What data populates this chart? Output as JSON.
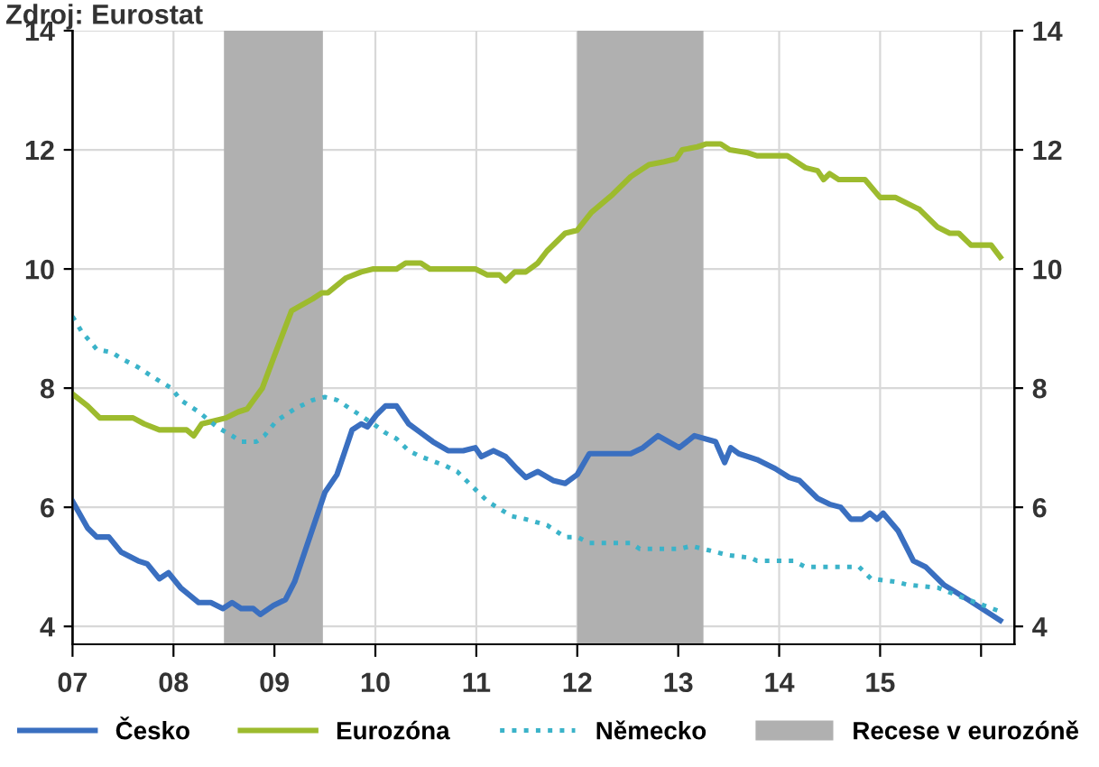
{
  "chart_data": {
    "type": "line",
    "annotations": [
      "Zdroj: Eurostat"
    ],
    "xlim": [
      7,
      16.33
    ],
    "xticks": [
      {
        "value": 7,
        "label": "07"
      },
      {
        "value": 8,
        "label": "08"
      },
      {
        "value": 9,
        "label": "09"
      },
      {
        "value": 10,
        "label": "10"
      },
      {
        "value": 11,
        "label": "11"
      },
      {
        "value": 12,
        "label": "12"
      },
      {
        "value": 13,
        "label": "13"
      },
      {
        "value": 14,
        "label": "14"
      },
      {
        "value": 15,
        "label": "15"
      },
      {
        "value": 16,
        "label": null
      }
    ],
    "ylim": [
      3.7,
      14
    ],
    "yticks": [
      4,
      6,
      8,
      10,
      12,
      14
    ],
    "y2lim": [
      3.7,
      14
    ],
    "y2ticks": [
      4,
      6,
      8,
      10,
      12,
      14
    ],
    "grid": true,
    "legend": "bottom",
    "bands": [
      {
        "axis": "x",
        "from": 8.5,
        "to": 9.48,
        "label": "Recese v eurozóně",
        "color": "#b0b0b0"
      },
      {
        "axis": "x",
        "from": 12.0,
        "to": 13.25,
        "color": "#b0b0b0"
      }
    ],
    "series": [
      {
        "name": "Česko",
        "color": "#3a6fc0",
        "line_style": "solid",
        "x": [
          7.0,
          7.15,
          7.24,
          7.36,
          7.48,
          7.65,
          7.74,
          7.86,
          7.95,
          8.07,
          8.25,
          8.37,
          8.49,
          8.58,
          8.67,
          8.79,
          8.86,
          8.99,
          9.11,
          9.2,
          9.35,
          9.5,
          9.62,
          9.77,
          9.86,
          9.92,
          10.01,
          10.1,
          10.21,
          10.33,
          10.45,
          10.57,
          10.72,
          10.87,
          10.99,
          11.05,
          11.17,
          11.29,
          11.4,
          11.49,
          11.61,
          11.76,
          11.88,
          12.0,
          12.12,
          12.53,
          12.65,
          12.8,
          13.01,
          13.16,
          13.37,
          13.46,
          13.52,
          13.6,
          13.78,
          13.96,
          14.1,
          14.2,
          14.38,
          14.5,
          14.61,
          14.71,
          14.82,
          14.9,
          14.97,
          15.03,
          15.18,
          15.33,
          15.45,
          15.63,
          15.87,
          16.19
        ],
        "values": [
          6.1,
          5.65,
          5.5,
          5.5,
          5.25,
          5.1,
          5.05,
          4.8,
          4.9,
          4.65,
          4.4,
          4.4,
          4.3,
          4.4,
          4.3,
          4.3,
          4.2,
          4.35,
          4.45,
          4.75,
          5.5,
          6.25,
          6.55,
          7.3,
          7.4,
          7.35,
          7.55,
          7.7,
          7.7,
          7.4,
          7.25,
          7.1,
          6.95,
          6.95,
          7.0,
          6.85,
          6.95,
          6.85,
          6.65,
          6.5,
          6.6,
          6.45,
          6.4,
          6.55,
          6.9,
          6.9,
          7.0,
          7.2,
          7.0,
          7.2,
          7.1,
          6.75,
          7.0,
          6.9,
          6.8,
          6.65,
          6.5,
          6.45,
          6.15,
          6.05,
          6.0,
          5.8,
          5.8,
          5.9,
          5.8,
          5.9,
          5.6,
          5.1,
          5.0,
          4.7,
          4.45,
          4.1
        ]
      },
      {
        "name": "Eurozóna",
        "color": "#9dbb2e",
        "line_style": "solid",
        "x": [
          7.0,
          7.15,
          7.27,
          7.6,
          7.71,
          7.86,
          8.13,
          8.2,
          8.28,
          8.4,
          8.52,
          8.64,
          8.73,
          8.88,
          8.99,
          9.17,
          9.38,
          9.47,
          9.53,
          9.71,
          9.86,
          9.98,
          10.21,
          10.3,
          10.45,
          10.54,
          10.99,
          11.11,
          11.23,
          11.29,
          11.38,
          11.49,
          11.61,
          11.7,
          11.88,
          12.0,
          12.14,
          12.35,
          12.53,
          12.71,
          12.86,
          12.98,
          13.04,
          13.19,
          13.28,
          13.42,
          13.51,
          13.69,
          13.78,
          14.08,
          14.17,
          14.26,
          14.38,
          14.44,
          14.5,
          14.59,
          14.85,
          15.0,
          15.15,
          15.39,
          15.57,
          15.69,
          15.78,
          15.9,
          16.1,
          16.19
        ],
        "values": [
          7.9,
          7.7,
          7.5,
          7.5,
          7.4,
          7.3,
          7.3,
          7.2,
          7.4,
          7.45,
          7.5,
          7.6,
          7.65,
          8.0,
          8.5,
          9.3,
          9.5,
          9.6,
          9.6,
          9.85,
          9.95,
          10.0,
          10.0,
          10.1,
          10.1,
          10.0,
          10.0,
          9.9,
          9.9,
          9.8,
          9.95,
          9.95,
          10.1,
          10.3,
          10.6,
          10.65,
          10.95,
          11.25,
          11.55,
          11.75,
          11.8,
          11.85,
          12.0,
          12.05,
          12.1,
          12.1,
          12.0,
          11.95,
          11.9,
          11.9,
          11.8,
          11.7,
          11.65,
          11.5,
          11.6,
          11.5,
          11.5,
          11.2,
          11.2,
          11.0,
          10.7,
          10.6,
          10.6,
          10.4,
          10.4,
          10.2
        ]
      },
      {
        "name": "Německo",
        "color": "#3bb3c9",
        "line_style": "dotted",
        "x": [
          7.0,
          7.09,
          7.24,
          7.39,
          7.48,
          7.65,
          7.83,
          7.98,
          8.07,
          8.25,
          8.43,
          8.58,
          8.67,
          8.82,
          8.9,
          9.02,
          9.2,
          9.38,
          9.5,
          9.62,
          9.8,
          9.98,
          10.1,
          10.21,
          10.33,
          10.45,
          10.69,
          10.81,
          10.99,
          11.11,
          11.35,
          11.49,
          11.7,
          11.88,
          12.0,
          12.12,
          12.53,
          12.62,
          13.01,
          13.13,
          13.37,
          13.48,
          13.72,
          13.78,
          14.14,
          14.26,
          14.79,
          14.91,
          15.15,
          15.27,
          15.57,
          15.87,
          16.19
        ],
        "values": [
          9.2,
          8.95,
          8.65,
          8.6,
          8.5,
          8.35,
          8.15,
          8.0,
          7.8,
          7.6,
          7.35,
          7.2,
          7.1,
          7.1,
          7.2,
          7.45,
          7.65,
          7.8,
          7.85,
          7.8,
          7.6,
          7.4,
          7.25,
          7.15,
          6.95,
          6.85,
          6.7,
          6.6,
          6.3,
          6.1,
          5.85,
          5.8,
          5.7,
          5.5,
          5.5,
          5.4,
          5.4,
          5.3,
          5.3,
          5.35,
          5.25,
          5.2,
          5.15,
          5.1,
          5.1,
          5.0,
          5.0,
          4.8,
          4.75,
          4.7,
          4.65,
          4.45,
          4.25
        ]
      }
    ]
  }
}
